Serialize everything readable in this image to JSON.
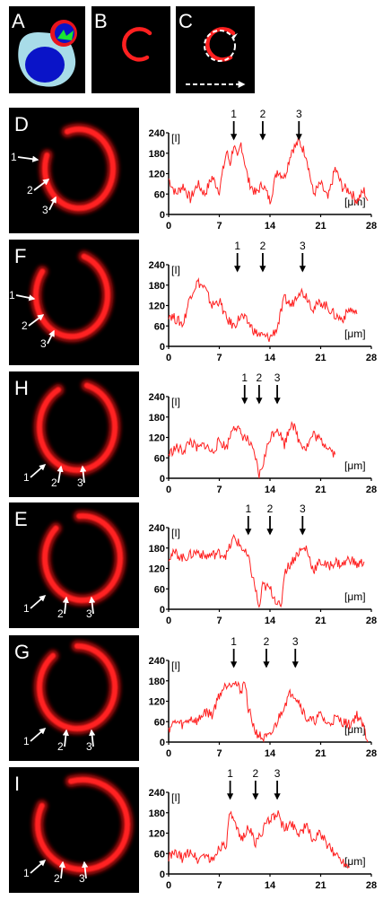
{
  "figure": {
    "top_panels": [
      {
        "letter": "A"
      },
      {
        "letter": "B"
      },
      {
        "letter": "C"
      }
    ],
    "panels": [
      {
        "letter": "D",
        "arrow_labels": [
          "1",
          "2",
          "3"
        ],
        "peak_markers": [
          "1",
          "2",
          "3"
        ]
      },
      {
        "letter": "F",
        "arrow_labels": [
          "1",
          "2",
          "3"
        ],
        "peak_markers": [
          "1",
          "2",
          "3"
        ]
      },
      {
        "letter": "H",
        "arrow_labels": [
          "1",
          "2",
          "3"
        ],
        "peak_markers": [
          "1",
          "2",
          "3"
        ]
      },
      {
        "letter": "E",
        "arrow_labels": [
          "1",
          "2",
          "3"
        ],
        "peak_markers": [
          "1",
          "2",
          "3"
        ]
      },
      {
        "letter": "G",
        "arrow_labels": [
          "1",
          "2",
          "3"
        ],
        "peak_markers": [
          "1",
          "2",
          "3"
        ]
      },
      {
        "letter": "I",
        "arrow_labels": [
          "1",
          "2",
          "3"
        ],
        "peak_markers": [
          "1",
          "2",
          "3"
        ]
      }
    ]
  },
  "colors": {
    "signal": "#ff2020",
    "cell_body": "#a8dce8",
    "nucleus": "#0a14c8",
    "ring": "#e8141e",
    "green_region": "#19e632",
    "background_dark": "#000000"
  },
  "chart_data": [
    {
      "type": "line",
      "panel": "D",
      "xlabel": "[μm]",
      "ylabel": "[I]",
      "xlim": [
        0,
        28
      ],
      "ylim": [
        0,
        240
      ],
      "x_ticks": [
        "0",
        "7",
        "14",
        "21",
        "28"
      ],
      "y_ticks": [
        "0",
        "60",
        "120",
        "180",
        "240"
      ],
      "peak_markers": [
        {
          "label": "1",
          "x": 9
        },
        {
          "label": "2",
          "x": 13
        },
        {
          "label": "3",
          "x": 18
        }
      ],
      "profile": [
        [
          0,
          105
        ],
        [
          1,
          60
        ],
        [
          2,
          85
        ],
        [
          3,
          45
        ],
        [
          4,
          90
        ],
        [
          5,
          60
        ],
        [
          6,
          110
        ],
        [
          7,
          70
        ],
        [
          8,
          185
        ],
        [
          8.5,
          150
        ],
        [
          9,
          205
        ],
        [
          9.5,
          160
        ],
        [
          10,
          210
        ],
        [
          11,
          100
        ],
        [
          12,
          60
        ],
        [
          13,
          90
        ],
        [
          14,
          40
        ],
        [
          15,
          130
        ],
        [
          16,
          110
        ],
        [
          17,
          190
        ],
        [
          17.5,
          200
        ],
        [
          18,
          215
        ],
        [
          19,
          175
        ],
        [
          20,
          60
        ],
        [
          21,
          90
        ],
        [
          22,
          45
        ],
        [
          23,
          135
        ],
        [
          24,
          80
        ],
        [
          25,
          70
        ],
        [
          26,
          40
        ],
        [
          27,
          70
        ],
        [
          27.5,
          40
        ]
      ]
    },
    {
      "type": "line",
      "panel": "F",
      "xlabel": "[μm]",
      "ylabel": "[I]",
      "xlim": [
        0,
        28
      ],
      "ylim": [
        0,
        240
      ],
      "x_ticks": [
        "0",
        "7",
        "14",
        "21",
        "28"
      ],
      "y_ticks": [
        "0",
        "60",
        "120",
        "180",
        "240"
      ],
      "peak_markers": [
        {
          "label": "1",
          "x": 9.5
        },
        {
          "label": "2",
          "x": 13
        },
        {
          "label": "3",
          "x": 18.5
        }
      ],
      "profile": [
        [
          0,
          95
        ],
        [
          1,
          80
        ],
        [
          2,
          65
        ],
        [
          3,
          150
        ],
        [
          4,
          190
        ],
        [
          5,
          170
        ],
        [
          6,
          120
        ],
        [
          7,
          135
        ],
        [
          8,
          80
        ],
        [
          9,
          60
        ],
        [
          10,
          90
        ],
        [
          11,
          70
        ],
        [
          12,
          40
        ],
        [
          13,
          30
        ],
        [
          14,
          25
        ],
        [
          15,
          55
        ],
        [
          16,
          140
        ],
        [
          17,
          120
        ],
        [
          18,
          165
        ],
        [
          19,
          150
        ],
        [
          20,
          110
        ],
        [
          21,
          130
        ],
        [
          22,
          115
        ],
        [
          23,
          90
        ],
        [
          24,
          80
        ],
        [
          25,
          110
        ],
        [
          26,
          95
        ]
      ]
    },
    {
      "type": "line",
      "panel": "H",
      "xlabel": "[μm]",
      "ylabel": "[I]",
      "xlim": [
        0,
        28
      ],
      "ylim": [
        0,
        240
      ],
      "x_ticks": [
        "0",
        "7",
        "14",
        "21",
        "28"
      ],
      "y_ticks": [
        "0",
        "60",
        "120",
        "180",
        "240"
      ],
      "peak_markers": [
        {
          "label": "1",
          "x": 10.5
        },
        {
          "label": "2",
          "x": 12.5
        },
        {
          "label": "3",
          "x": 15
        }
      ],
      "profile": [
        [
          0,
          70
        ],
        [
          1,
          90
        ],
        [
          2,
          80
        ],
        [
          3,
          110
        ],
        [
          4,
          85
        ],
        [
          5,
          100
        ],
        [
          6,
          75
        ],
        [
          7,
          110
        ],
        [
          8,
          90
        ],
        [
          9,
          160
        ],
        [
          10,
          130
        ],
        [
          11,
          110
        ],
        [
          12,
          60
        ],
        [
          12.5,
          5
        ],
        [
          13,
          40
        ],
        [
          14,
          120
        ],
        [
          15,
          150
        ],
        [
          16,
          100
        ],
        [
          17,
          170
        ],
        [
          18,
          110
        ],
        [
          19,
          90
        ],
        [
          20,
          130
        ],
        [
          21,
          110
        ],
        [
          22,
          95
        ],
        [
          23,
          70
        ]
      ]
    },
    {
      "type": "line",
      "panel": "E",
      "xlabel": "[μm]",
      "ylabel": "[I]",
      "xlim": [
        0,
        28
      ],
      "ylim": [
        0,
        240
      ],
      "x_ticks": [
        "0",
        "7",
        "14",
        "21",
        "28"
      ],
      "y_ticks": [
        "0",
        "60",
        "120",
        "180",
        "240"
      ],
      "peak_markers": [
        {
          "label": "1",
          "x": 11
        },
        {
          "label": "2",
          "x": 14
        },
        {
          "label": "3",
          "x": 18.5
        }
      ],
      "profile": [
        [
          0,
          155
        ],
        [
          1,
          165
        ],
        [
          2,
          150
        ],
        [
          3,
          160
        ],
        [
          4,
          170
        ],
        [
          5,
          155
        ],
        [
          6,
          160
        ],
        [
          7,
          165
        ],
        [
          8,
          160
        ],
        [
          9,
          210
        ],
        [
          10,
          185
        ],
        [
          11,
          150
        ],
        [
          12,
          60
        ],
        [
          12.5,
          0
        ],
        [
          13,
          70
        ],
        [
          14,
          60
        ],
        [
          15,
          20
        ],
        [
          15.5,
          0
        ],
        [
          16,
          110
        ],
        [
          17,
          140
        ],
        [
          18,
          170
        ],
        [
          19,
          180
        ],
        [
          20,
          115
        ],
        [
          21,
          140
        ],
        [
          22,
          125
        ],
        [
          23,
          140
        ],
        [
          24,
          130
        ],
        [
          25,
          150
        ],
        [
          26,
          130
        ],
        [
          27,
          140
        ]
      ]
    },
    {
      "type": "line",
      "panel": "G",
      "xlabel": "[μm]",
      "ylabel": "[I]",
      "xlim": [
        0,
        28
      ],
      "ylim": [
        0,
        240
      ],
      "x_ticks": [
        "0",
        "7",
        "14",
        "21",
        "28"
      ],
      "y_ticks": [
        "0",
        "60",
        "120",
        "180",
        "240"
      ],
      "peak_markers": [
        {
          "label": "1",
          "x": 9
        },
        {
          "label": "2",
          "x": 13.5
        },
        {
          "label": "3",
          "x": 17.5
        }
      ],
      "profile": [
        [
          0,
          40
        ],
        [
          1,
          60
        ],
        [
          2,
          50
        ],
        [
          3,
          70
        ],
        [
          4,
          60
        ],
        [
          5,
          90
        ],
        [
          6,
          80
        ],
        [
          7,
          140
        ],
        [
          8,
          170
        ],
        [
          9,
          180
        ],
        [
          10,
          150
        ],
        [
          10.5,
          180
        ],
        [
          11,
          100
        ],
        [
          12,
          30
        ],
        [
          13,
          10
        ],
        [
          14,
          15
        ],
        [
          15,
          60
        ],
        [
          16,
          110
        ],
        [
          17,
          150
        ],
        [
          18,
          120
        ],
        [
          19,
          70
        ],
        [
          20,
          60
        ],
        [
          21,
          80
        ],
        [
          22,
          50
        ],
        [
          23,
          70
        ],
        [
          24,
          60
        ],
        [
          25,
          50
        ],
        [
          26,
          80
        ],
        [
          27,
          40
        ],
        [
          27.5,
          0
        ]
      ]
    },
    {
      "type": "line",
      "panel": "I",
      "xlabel": "[μm]",
      "ylabel": "[I]",
      "xlim": [
        0,
        28
      ],
      "ylim": [
        0,
        240
      ],
      "x_ticks": [
        "0",
        "7",
        "14",
        "21",
        "28"
      ],
      "y_ticks": [
        "0",
        "60",
        "120",
        "180",
        "240"
      ],
      "peak_markers": [
        {
          "label": "1",
          "x": 8.5
        },
        {
          "label": "2",
          "x": 12
        },
        {
          "label": "3",
          "x": 15
        }
      ],
      "profile": [
        [
          0,
          50
        ],
        [
          1,
          60
        ],
        [
          2,
          45
        ],
        [
          3,
          70
        ],
        [
          4,
          40
        ],
        [
          5,
          60
        ],
        [
          6,
          35
        ],
        [
          7,
          80
        ],
        [
          8,
          90
        ],
        [
          8.5,
          185
        ],
        [
          9,
          150
        ],
        [
          10,
          100
        ],
        [
          11,
          140
        ],
        [
          12,
          90
        ],
        [
          13,
          130
        ],
        [
          14,
          160
        ],
        [
          15,
          180
        ],
        [
          16,
          130
        ],
        [
          17,
          150
        ],
        [
          18,
          120
        ],
        [
          19,
          140
        ],
        [
          20,
          100
        ],
        [
          21,
          120
        ],
        [
          22,
          80
        ],
        [
          23,
          60
        ],
        [
          24,
          40
        ],
        [
          25,
          20
        ]
      ]
    }
  ]
}
